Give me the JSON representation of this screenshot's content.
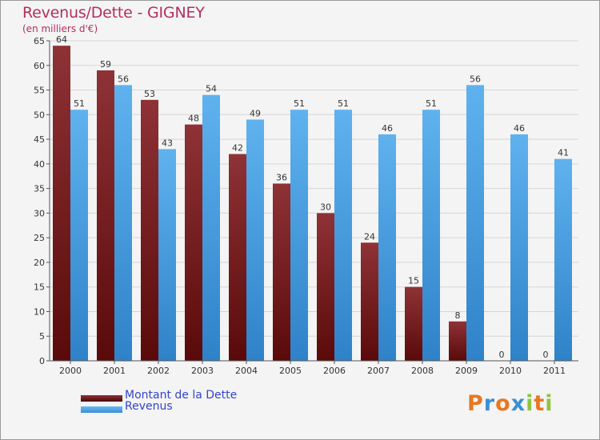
{
  "header": {
    "title": "Revenus/Dette - GIGNEY",
    "subtitle": "(en milliers d'€)"
  },
  "legend": {
    "items": [
      {
        "label": "Montant de la Dette",
        "color": "#7a1a1a"
      },
      {
        "label": "Revenus",
        "color": "#4aa3e6"
      }
    ]
  },
  "logo": {
    "text": "Proxiti",
    "letters": [
      "P",
      "r",
      "o",
      "x",
      "i",
      "t",
      "i"
    ],
    "colors": [
      "#e87722",
      "#3a8fd6",
      "#e87722",
      "#3a8fd6",
      "#8cc63f",
      "#e87722",
      "#8cc63f"
    ]
  },
  "chart_data": {
    "type": "bar",
    "categories": [
      "2000",
      "2001",
      "2002",
      "2003",
      "2004",
      "2005",
      "2006",
      "2007",
      "2008",
      "2009",
      "2010",
      "2011"
    ],
    "series": [
      {
        "name": "Montant de la Dette",
        "values": [
          64,
          59,
          53,
          48,
          42,
          36,
          30,
          24,
          15,
          8,
          0,
          0
        ],
        "color": "#7a1a1a"
      },
      {
        "name": "Revenus",
        "values": [
          51,
          56,
          43,
          54,
          49,
          51,
          51,
          46,
          51,
          56,
          46,
          41
        ],
        "color": "#4aa3e6"
      }
    ],
    "ylim": [
      0,
      65
    ],
    "yticks": [
      0,
      5,
      10,
      15,
      20,
      25,
      30,
      35,
      40,
      45,
      50,
      55,
      60,
      65
    ],
    "grid": true,
    "legend_position": "bottom-left"
  }
}
